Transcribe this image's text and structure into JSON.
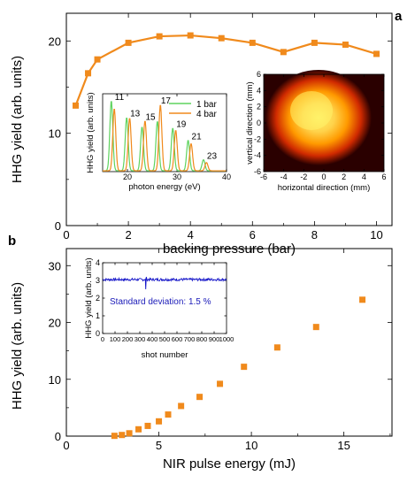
{
  "colors": {
    "orange": "#f08a1c",
    "green": "#5fd35f",
    "blue": "#1414c8",
    "beam_core": "#fff36a",
    "beam_mid": "#ff9a00",
    "beam_edge": "#c81a00",
    "beam_bg": "#2a0000"
  },
  "chart_data": [
    {
      "panel": "a",
      "type": "line",
      "xlabel": "backing pressure (bar)",
      "ylabel": "HHG yield (arb. units)",
      "xlim": [
        0,
        10.5
      ],
      "ylim": [
        0,
        23
      ],
      "xticks": [
        "0",
        "2",
        "4",
        "6",
        "8",
        "10"
      ],
      "yticks": [
        "0",
        "10",
        "20"
      ],
      "series": [
        {
          "marker": "square",
          "x": [
            0.3,
            0.7,
            1.0,
            2.0,
            3.0,
            4.0,
            5.0,
            6.0,
            7.0,
            8.0,
            9.0,
            10.0
          ],
          "y": [
            13.0,
            16.5,
            18.0,
            19.8,
            20.5,
            20.6,
            20.3,
            19.8,
            18.8,
            19.8,
            19.6,
            18.6
          ]
        }
      ],
      "insets": [
        {
          "type": "line",
          "xlabel": "photon energy (eV)",
          "ylabel": "HHG yield (arb. units)",
          "xlim": [
            15,
            40
          ],
          "ylim": [
            0,
            14
          ],
          "xticks": [
            "20",
            "30",
            "40"
          ],
          "peak_labels": [
            "11",
            "13",
            "15",
            "17",
            "19",
            "21",
            "23"
          ],
          "peak_energies": [
            17.1,
            20.2,
            23.3,
            26.4,
            29.5,
            32.6,
            35.7
          ],
          "series": [
            {
              "name": "1 bar",
              "peak_heights": [
                12.6,
                9.6,
                7.9,
                8.9,
                7.7,
                5.5,
                2.0
              ]
            },
            {
              "name": "4 bar",
              "peak_heights": [
                11.2,
                9.5,
                9.0,
                11.9,
                7.3,
                4.9,
                1.5
              ]
            }
          ]
        },
        {
          "type": "heatmap",
          "xlabel": "horizontal direction (mm)",
          "ylabel": "vertical direction (mm)",
          "xlim": [
            -6,
            6
          ],
          "ylim": [
            -6,
            6
          ],
          "xticks": [
            "-6",
            "-4",
            "-2",
            "0",
            "2",
            "4",
            "6"
          ],
          "yticks": [
            "-6",
            "-4",
            "-2",
            "0",
            "2",
            "4",
            "6"
          ]
        }
      ]
    },
    {
      "panel": "b",
      "type": "scatter",
      "xlabel": "NIR pulse energy (mJ)",
      "ylabel": "HHG yield (arb. units)",
      "xlim": [
        0,
        17.6
      ],
      "ylim": [
        0,
        33
      ],
      "xticks": [
        "0",
        "5",
        "10",
        "15"
      ],
      "yticks": [
        "0",
        "10",
        "20",
        "30"
      ],
      "series": [
        {
          "marker": "square",
          "x": [
            2.6,
            3.0,
            3.4,
            3.9,
            4.4,
            5.0,
            5.5,
            6.2,
            7.2,
            8.3,
            9.6,
            11.4,
            13.5,
            16.0
          ],
          "y": [
            0.05,
            0.2,
            0.5,
            1.2,
            1.8,
            2.6,
            3.8,
            5.3,
            6.9,
            9.2,
            12.2,
            15.6,
            19.2,
            24.0
          ]
        }
      ],
      "insets": [
        {
          "type": "line",
          "xlabel": "shot number",
          "ylabel": "HHG yield (arb. units)",
          "xlim": [
            0,
            1000
          ],
          "ylim": [
            0,
            4
          ],
          "xticks": [
            "0",
            "100",
            "200",
            "300",
            "400",
            "500",
            "600",
            "700",
            "800",
            "900",
            "1000"
          ],
          "yticks": [
            "0",
            "1",
            "2",
            "3",
            "4"
          ],
          "annotation": "Standard deviation: 1.5 %",
          "mean": 3.05,
          "relative_std": 0.015
        }
      ]
    }
  ]
}
